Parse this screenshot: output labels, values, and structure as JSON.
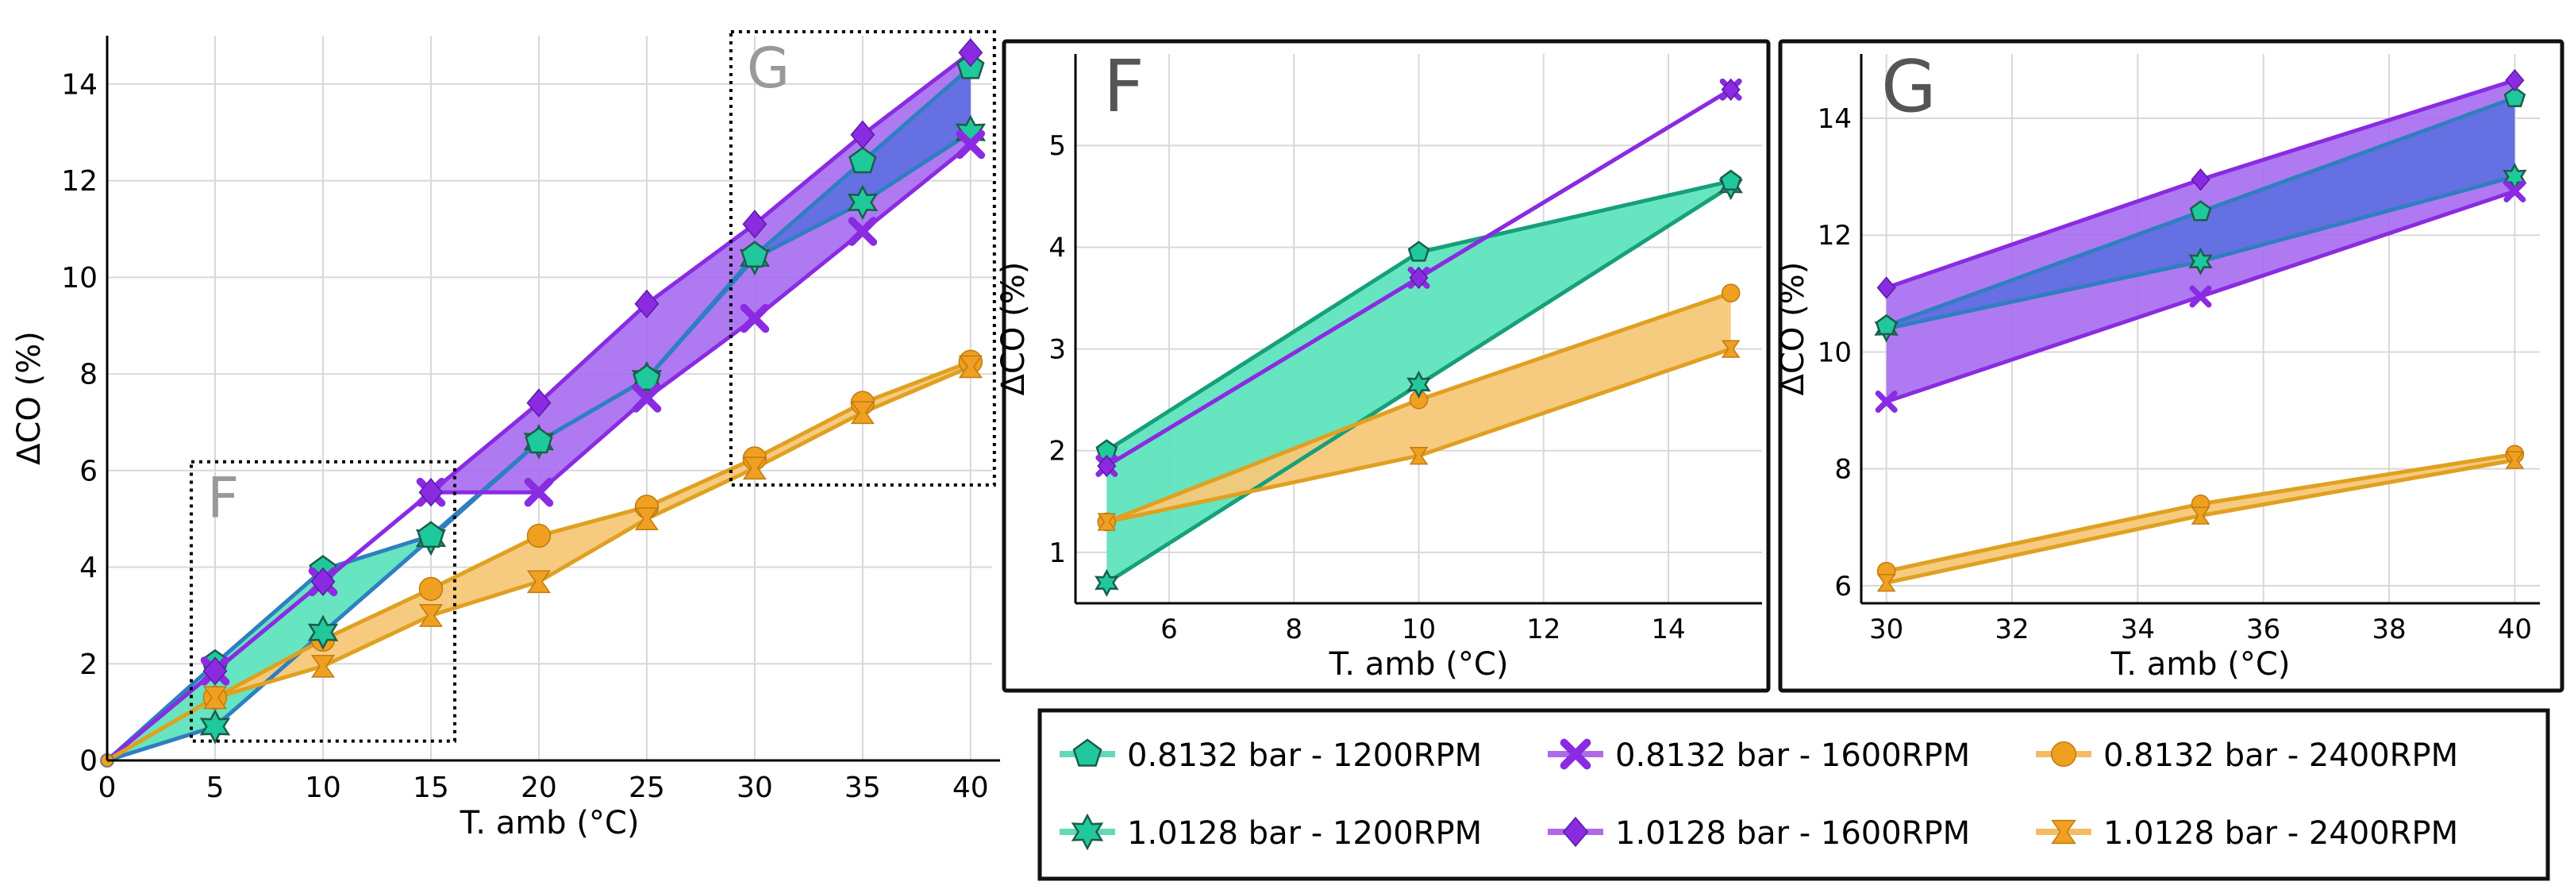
{
  "colors": {
    "green": "#1fc99b",
    "green_fill": "#5fe3bd",
    "green_line": "#16a07a",
    "purple": "#8a2be2",
    "purple_fill": "#a66bf0",
    "overlap_fill": "#5a6fe0",
    "overlap_line": "#2f7fc0",
    "orange": "#f0a020",
    "orange_fill": "#f5c879",
    "orange_line": "#e0a020",
    "grid": "#d8d8d8",
    "text": "#000000",
    "inset_letter": "#999999"
  },
  "chart_data": [
    {
      "id": "main",
      "type": "line",
      "xlabel": "T. amb (°C)",
      "ylabel": "ΔCO (%)",
      "xlim": [
        0,
        41
      ],
      "ylim": [
        0,
        15
      ],
      "xticks": [
        0,
        5,
        10,
        15,
        20,
        25,
        30,
        35,
        40
      ],
      "yticks": [
        0,
        2,
        4,
        6,
        8,
        10,
        12,
        14
      ],
      "x": [
        0,
        5,
        10,
        15,
        20,
        25,
        30,
        35,
        40
      ],
      "series": [
        {
          "name": "0.8132 bar - 1200RPM",
          "values": [
            0,
            2.0,
            3.95,
            4.65,
            6.6,
            7.9,
            10.45,
            12.4,
            14.35
          ]
        },
        {
          "name": "1.0128 bar - 1200RPM",
          "values": [
            0,
            0.7,
            2.65,
            4.6,
            6.6,
            7.9,
            10.4,
            11.55,
            13.0
          ]
        },
        {
          "name": "0.8132 bar - 1600RPM",
          "values": [
            0,
            1.85,
            3.7,
            5.55,
            5.55,
            7.5,
            9.15,
            10.95,
            12.75
          ]
        },
        {
          "name": "1.0128 bar - 1600RPM",
          "values": [
            0,
            1.85,
            3.7,
            5.55,
            7.4,
            9.45,
            11.1,
            12.95,
            14.65
          ]
        },
        {
          "name": "0.8132 bar - 2400RPM",
          "values": [
            0,
            1.3,
            2.5,
            3.55,
            4.65,
            5.25,
            6.25,
            7.4,
            8.25
          ]
        },
        {
          "name": "1.0128 bar - 2400RPM",
          "values": [
            0,
            1.3,
            1.95,
            3.0,
            3.7,
            5.0,
            6.05,
            7.2,
            8.15
          ]
        }
      ],
      "zoom_boxes": [
        {
          "label": "F",
          "xrange": [
            5,
            15
          ],
          "yrange": [
            0.4,
            6.1
          ]
        },
        {
          "label": "G",
          "xrange": [
            30,
            40
          ],
          "yrange": [
            5.7,
            15
          ]
        }
      ]
    },
    {
      "id": "inset_F",
      "type": "line",
      "label": "F",
      "xlabel": "T. amb (°C)",
      "ylabel": "ΔCO (%)",
      "xlim": [
        4.5,
        15.5
      ],
      "ylim": [
        0.5,
        5.9
      ],
      "xticks": [
        6,
        8,
        10,
        12,
        14
      ],
      "yticks": [
        1,
        2,
        3,
        4,
        5
      ],
      "x": [
        5,
        10,
        15
      ],
      "series": [
        {
          "name": "0.8132 bar - 1200RPM",
          "values": [
            2.0,
            3.95,
            4.65
          ]
        },
        {
          "name": "1.0128 bar - 1200RPM",
          "values": [
            0.7,
            2.65,
            4.6
          ]
        },
        {
          "name": "0.8132 bar - 1600RPM",
          "values": [
            1.85,
            3.7,
            5.55
          ]
        },
        {
          "name": "1.0128 bar - 1600RPM",
          "values": [
            1.85,
            3.7,
            5.55
          ]
        },
        {
          "name": "0.8132 bar - 2400RPM",
          "values": [
            1.3,
            2.5,
            3.55
          ]
        },
        {
          "name": "1.0128 bar - 2400RPM",
          "values": [
            1.3,
            1.95,
            3.0
          ]
        }
      ]
    },
    {
      "id": "inset_G",
      "type": "line",
      "label": "G",
      "xlabel": "T. amb (°C)",
      "ylabel": "ΔCO (%)",
      "xlim": [
        29.6,
        40.4
      ],
      "ylim": [
        5.7,
        15.1
      ],
      "xticks": [
        30,
        32,
        34,
        36,
        38,
        40
      ],
      "yticks": [
        6,
        8,
        10,
        12,
        14
      ],
      "x": [
        30,
        35,
        40
      ],
      "series": [
        {
          "name": "0.8132 bar - 1200RPM",
          "values": [
            10.45,
            12.4,
            14.35
          ]
        },
        {
          "name": "1.0128 bar - 1200RPM",
          "values": [
            10.4,
            11.55,
            13.0
          ]
        },
        {
          "name": "0.8132 bar - 1600RPM",
          "values": [
            9.15,
            10.95,
            12.75
          ]
        },
        {
          "name": "1.0128 bar - 1600RPM",
          "values": [
            11.1,
            12.95,
            14.65
          ]
        },
        {
          "name": "0.8132 bar - 2400RPM",
          "values": [
            6.25,
            7.4,
            8.25
          ]
        },
        {
          "name": "1.0128 bar - 2400RPM",
          "values": [
            6.05,
            7.2,
            8.15
          ]
        }
      ]
    }
  ],
  "legend": {
    "entries": [
      {
        "label": "0.8132 bar - 1200RPM",
        "marker": "pentagon",
        "color": "#1fc99b"
      },
      {
        "label": "0.8132 bar - 1600RPM",
        "marker": "x",
        "color": "#8a2be2"
      },
      {
        "label": "0.8132 bar - 2400RPM",
        "marker": "circle",
        "color": "#f0a020"
      },
      {
        "label": "1.0128 bar - 1200RPM",
        "marker": "star",
        "color": "#1fc99b"
      },
      {
        "label": "1.0128 bar - 1600RPM",
        "marker": "diamond",
        "color": "#8a2be2"
      },
      {
        "label": "1.0128 bar - 2400RPM",
        "marker": "bowtie",
        "color": "#f0a020"
      }
    ]
  }
}
